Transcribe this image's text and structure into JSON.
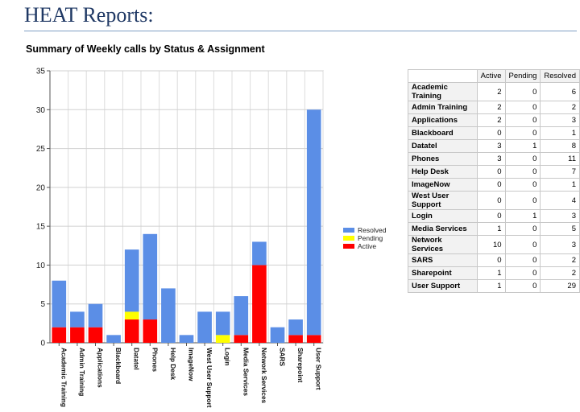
{
  "header": {
    "title": "HEAT Reports:"
  },
  "chart_data": {
    "type": "bar",
    "stacked": true,
    "title": "Summary of Weekly calls by Status & Assignment",
    "categories": [
      "Academic Training",
      "Admin Training",
      "Applications",
      "Blackboard",
      "Datatel",
      "Phones",
      "Help Desk",
      "ImageNow",
      "West User Support",
      "Login",
      "Media Services",
      "Network Services",
      "SARS",
      "Sharepoint",
      "User Support"
    ],
    "series": [
      {
        "name": "Active",
        "color": "#ff0000",
        "values": [
          2,
          2,
          2,
          0,
          3,
          3,
          0,
          0,
          0,
          0,
          1,
          10,
          0,
          1,
          1
        ]
      },
      {
        "name": "Pending",
        "color": "#ffff00",
        "values": [
          0,
          0,
          0,
          0,
          1,
          0,
          0,
          0,
          0,
          1,
          0,
          0,
          0,
          0,
          0
        ]
      },
      {
        "name": "Resolved",
        "color": "#5b8ee6",
        "values": [
          6,
          2,
          3,
          1,
          8,
          11,
          7,
          1,
          4,
          3,
          5,
          3,
          2,
          2,
          29
        ]
      }
    ],
    "ylim": [
      0,
      35
    ],
    "yticks": [
      0,
      5,
      10,
      15,
      20,
      25,
      30,
      35
    ],
    "grid": true,
    "legend": {
      "position": "right",
      "order": [
        "Resolved",
        "Pending",
        "Active"
      ]
    }
  },
  "table": {
    "columns": [
      "Active",
      "Pending",
      "Resolved"
    ],
    "rows": [
      {
        "name": "Academic Training",
        "values": [
          2,
          0,
          6
        ]
      },
      {
        "name": "Admin Training",
        "values": [
          2,
          0,
          2
        ]
      },
      {
        "name": "Applications",
        "values": [
          2,
          0,
          3
        ]
      },
      {
        "name": "Blackboard",
        "values": [
          0,
          0,
          1
        ]
      },
      {
        "name": "Datatel",
        "values": [
          3,
          1,
          8
        ]
      },
      {
        "name": "Phones",
        "values": [
          3,
          0,
          11
        ]
      },
      {
        "name": "Help Desk",
        "values": [
          0,
          0,
          7
        ]
      },
      {
        "name": "ImageNow",
        "values": [
          0,
          0,
          1
        ]
      },
      {
        "name": "West User Support",
        "values": [
          0,
          0,
          4
        ]
      },
      {
        "name": "Login",
        "values": [
          0,
          1,
          3
        ]
      },
      {
        "name": "Media Services",
        "values": [
          1,
          0,
          5
        ]
      },
      {
        "name": "Network Services",
        "values": [
          10,
          0,
          3
        ]
      },
      {
        "name": "SARS",
        "values": [
          0,
          0,
          2
        ]
      },
      {
        "name": "Sharepoint",
        "values": [
          1,
          0,
          2
        ]
      },
      {
        "name": "User Support",
        "values": [
          1,
          0,
          29
        ]
      }
    ]
  }
}
